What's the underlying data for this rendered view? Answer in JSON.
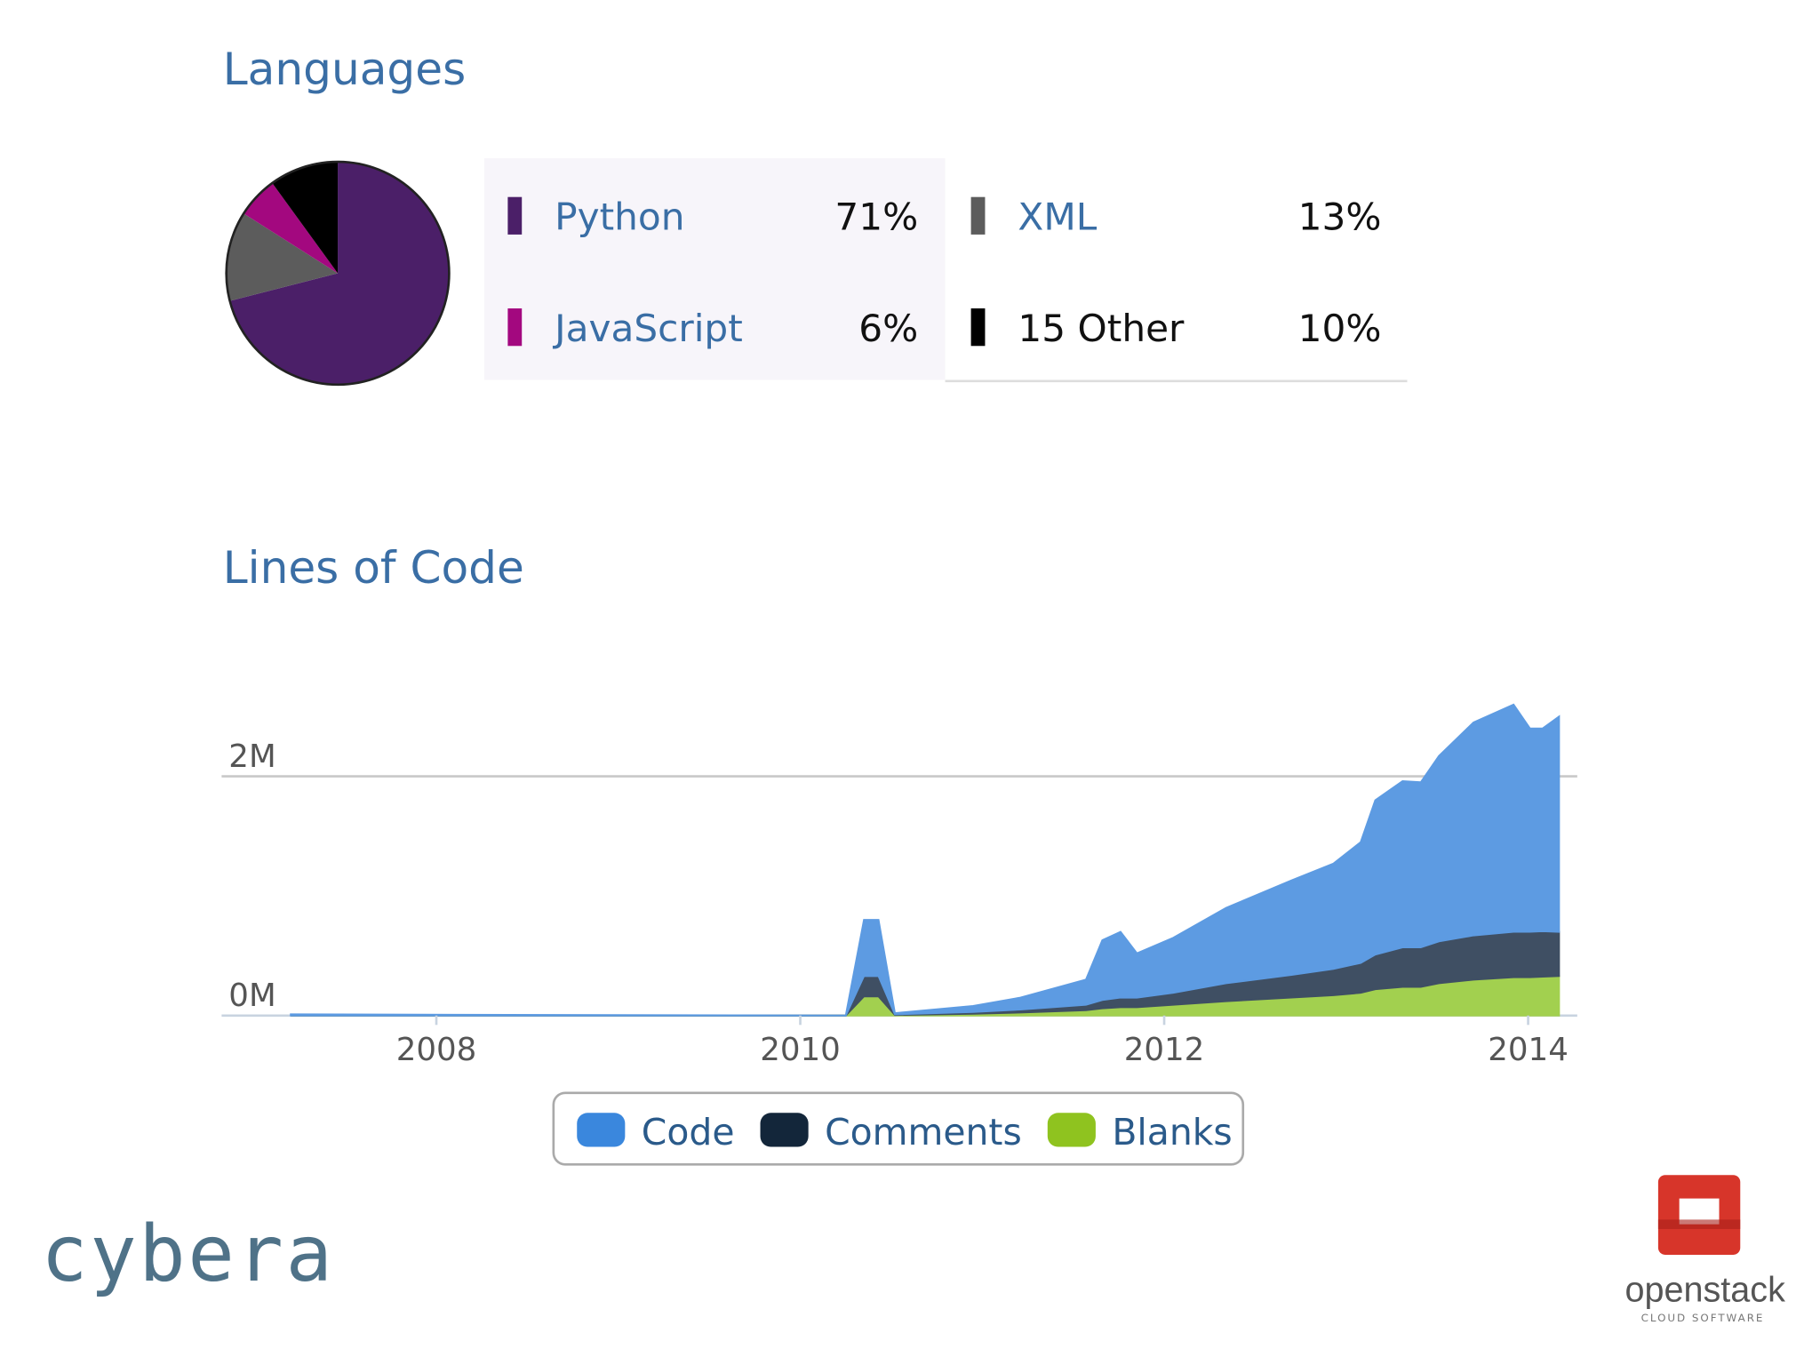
{
  "chart_data": [
    {
      "type": "pie",
      "title": "Languages",
      "categories": [
        "Python",
        "XML",
        "JavaScript",
        "15 Other"
      ],
      "values": [
        71,
        13,
        6,
        10
      ],
      "value_labels": [
        "71%",
        "13%",
        "6%",
        "10%"
      ],
      "colors": [
        "#4b1f68",
        "#5c5c5c",
        "#a3087f",
        "#000000"
      ]
    },
    {
      "type": "stacked_area",
      "title": "Lines of Code",
      "x": [
        2007.2,
        2010.25,
        2010.35,
        2010.43,
        2010.52,
        2010.95,
        2011.21,
        2011.57,
        2011.66,
        2011.76,
        2011.85,
        2012.05,
        2012.34,
        2012.7,
        2012.93,
        2013.08,
        2013.16,
        2013.31,
        2013.41,
        2013.51,
        2013.7,
        2013.92,
        2014.01,
        2014.08,
        2014.17
      ],
      "series": [
        {
          "name": "Code",
          "color": "#5d9be2",
          "legend_color": "#3a87dd",
          "values": [
            10000,
            0,
            470000,
            470000,
            10000,
            50000,
            100000,
            210000,
            500000,
            550000,
            370000,
            460000,
            630000,
            790000,
            880000,
            1010000,
            1290000,
            1390000,
            1380000,
            1550000,
            1780000,
            1900000,
            1700000,
            1695000,
            1800000
          ]
        },
        {
          "name": "Comments",
          "color": "#3f4f63",
          "legend_color": "#13263a",
          "values": [
            0,
            0,
            170000,
            170000,
            5000,
            15000,
            25000,
            45000,
            70000,
            80000,
            80000,
            100000,
            150000,
            190000,
            220000,
            250000,
            290000,
            330000,
            330000,
            350000,
            370000,
            380000,
            380000,
            380000,
            370000
          ]
        },
        {
          "name": "Blanks",
          "color": "#a2d04f",
          "legend_color": "#8fc31f",
          "values": [
            0,
            0,
            160000,
            160000,
            5000,
            15000,
            25000,
            45000,
            60000,
            70000,
            70000,
            90000,
            120000,
            150000,
            170000,
            190000,
            220000,
            240000,
            240000,
            270000,
            300000,
            320000,
            320000,
            325000,
            330000
          ]
        }
      ],
      "stacked": true,
      "xlim": [
        2006.82,
        2014.27
      ],
      "xticks": [
        2008,
        2010,
        2012,
        2014
      ],
      "ylim": [
        0,
        2700000
      ],
      "yticks": [
        {
          "value": 0,
          "label": "0M"
        },
        {
          "value": 2000000,
          "label": "2M"
        }
      ],
      "grid": true
    }
  ],
  "logos": {
    "left": "cybera",
    "right": "openstack",
    "right_sub": "CLOUD SOFTWARE"
  }
}
